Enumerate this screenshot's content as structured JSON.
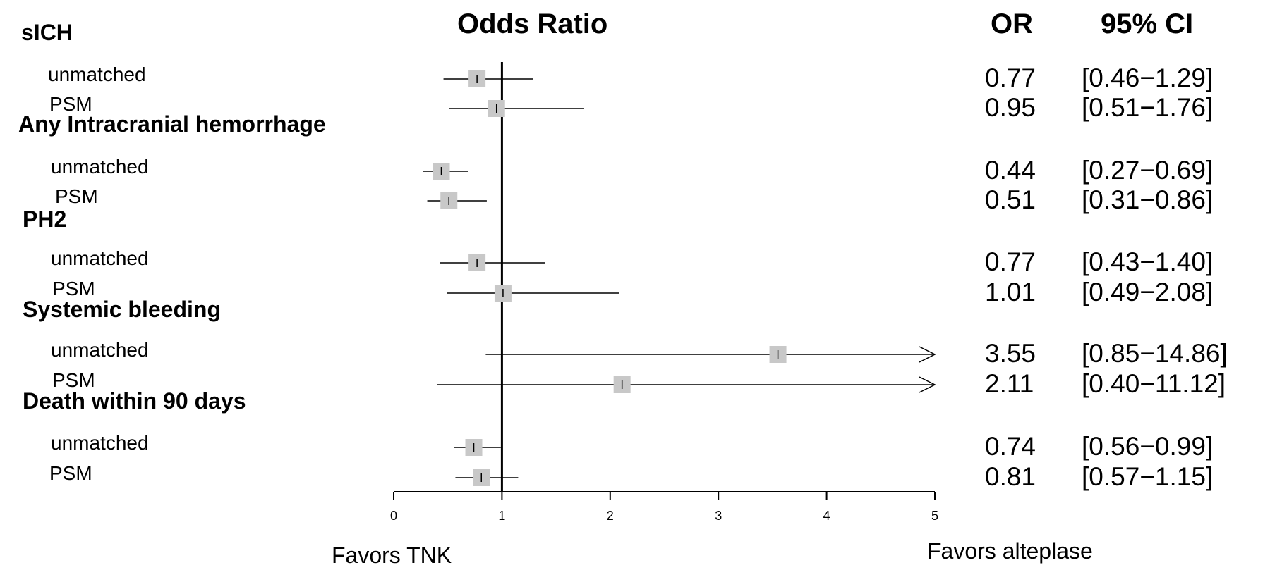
{
  "chart_data": {
    "type": "forest",
    "title": "Odds Ratio",
    "xlim": [
      0,
      5
    ],
    "reference_line": 1,
    "x_ticks": [
      "0",
      "1",
      "2",
      "3",
      "4",
      "5"
    ],
    "column_headers": {
      "or": "OR",
      "ci": "95% CI"
    },
    "favors_left": "Favors TNK",
    "favors_right": "Favors alteplase",
    "groups": [
      {
        "label": "sICH",
        "rows": [
          {
            "label": "unmatched",
            "or": 0.77,
            "lo": 0.46,
            "hi": 1.29,
            "or_text": "0.77",
            "ci_text": "[0.46−1.29]"
          },
          {
            "label": "PSM",
            "or": 0.95,
            "lo": 0.51,
            "hi": 1.76,
            "or_text": "0.95",
            "ci_text": "[0.51−1.76]"
          }
        ]
      },
      {
        "label": "Any Intracranial hemorrhage",
        "rows": [
          {
            "label": "unmatched",
            "or": 0.44,
            "lo": 0.27,
            "hi": 0.69,
            "or_text": "0.44",
            "ci_text": "[0.27−0.69]"
          },
          {
            "label": "PSM",
            "or": 0.51,
            "lo": 0.31,
            "hi": 0.86,
            "or_text": "0.51",
            "ci_text": "[0.31−0.86]"
          }
        ]
      },
      {
        "label": "PH2",
        "rows": [
          {
            "label": "unmatched",
            "or": 0.77,
            "lo": 0.43,
            "hi": 1.4,
            "or_text": "0.77",
            "ci_text": "[0.43−1.40]"
          },
          {
            "label": "PSM",
            "or": 1.01,
            "lo": 0.49,
            "hi": 2.08,
            "or_text": "1.01",
            "ci_text": "[0.49−2.08]"
          }
        ]
      },
      {
        "label": "Systemic bleeding",
        "rows": [
          {
            "label": "unmatched",
            "or": 3.55,
            "lo": 0.85,
            "hi": 14.86,
            "or_text": "3.55",
            "ci_text": "[0.85−14.86]"
          },
          {
            "label": "PSM",
            "or": 2.11,
            "lo": 0.4,
            "hi": 11.12,
            "or_text": "2.11",
            "ci_text": "[0.40−11.12]"
          }
        ]
      },
      {
        "label": "Death within 90 days",
        "rows": [
          {
            "label": "unmatched",
            "or": 0.74,
            "lo": 0.56,
            "hi": 0.99,
            "or_text": "0.74",
            "ci_text": "[0.56−0.99]"
          },
          {
            "label": "PSM",
            "or": 0.81,
            "lo": 0.57,
            "hi": 1.15,
            "or_text": "0.81",
            "ci_text": "[0.57−1.15]"
          }
        ]
      }
    ],
    "colors": {
      "marker": "#c8c8c8",
      "line": "#000000"
    }
  }
}
